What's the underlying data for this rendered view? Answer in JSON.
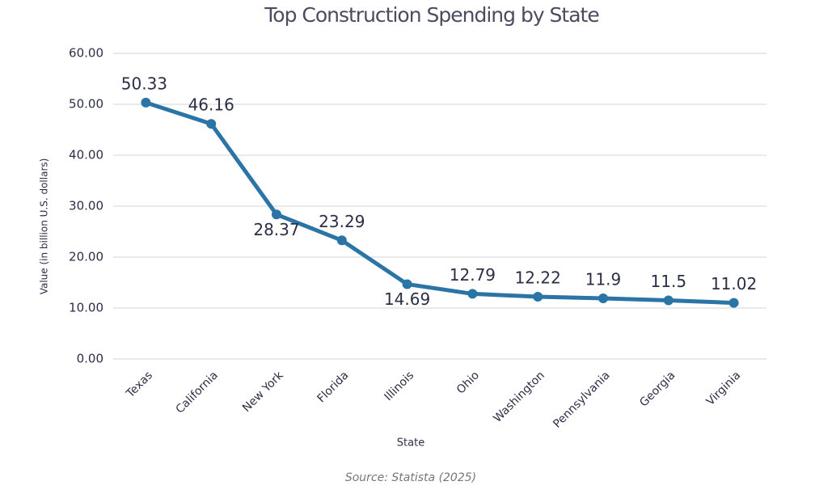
{
  "chart_data": {
    "type": "line",
    "title": "Top Construction Spending by State",
    "x_label": "State",
    "y_label": "Value (in billion U.S. dollars)",
    "categories": [
      "Texas",
      "California",
      "New York",
      "Florida",
      "Illinois",
      "Ohio",
      "Washington",
      "Pennsylvania",
      "Georgia",
      "Virginia"
    ],
    "series": [
      {
        "name": "Value",
        "color": "#2a74a6",
        "values": [
          50.33,
          46.16,
          28.37,
          23.29,
          14.69,
          12.79,
          12.22,
          11.9,
          11.5,
          11.02
        ]
      }
    ],
    "ylim": [
      0,
      60
    ],
    "yticks": [
      {
        "value": 0,
        "label": "0.00"
      },
      {
        "value": 10,
        "label": "10.00"
      },
      {
        "value": 20,
        "label": "20.00"
      },
      {
        "value": 30,
        "label": "30.00"
      },
      {
        "value": 40,
        "label": "40.00"
      },
      {
        "value": 50,
        "label": "50.00"
      },
      {
        "value": 60,
        "label": "60.00"
      }
    ],
    "grid": true,
    "source": "Source: Statista (2025)"
  }
}
